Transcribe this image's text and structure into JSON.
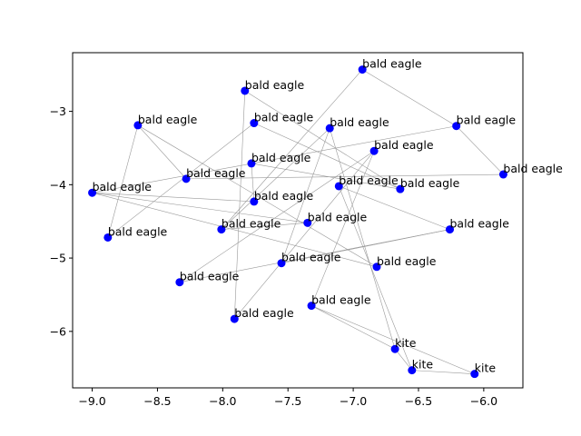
{
  "chart_data": {
    "type": "scatter",
    "title": "",
    "xlabel": "",
    "ylabel": "",
    "xlim": [
      -9.15,
      -5.7
    ],
    "ylim": [
      -6.77,
      -2.2
    ],
    "xticks": [
      -9.0,
      -8.5,
      -8.0,
      -7.5,
      -7.0,
      -6.5,
      -6.0
    ],
    "xtick_labels": [
      "−9.0",
      "−8.5",
      "−8.0",
      "−7.5",
      "−7.0",
      "−6.5",
      "−6.0"
    ],
    "yticks": [
      -6,
      -5,
      -4,
      -3
    ],
    "ytick_labels": [
      "−6",
      "−5",
      "−4",
      "−3"
    ],
    "grid": false,
    "marker_color": "#0000ff",
    "line_color": "#999999",
    "points": [
      {
        "x": -6.93,
        "y": -2.43,
        "label": "bald eagle"
      },
      {
        "x": -7.83,
        "y": -2.72,
        "label": "bald eagle"
      },
      {
        "x": -8.65,
        "y": -3.19,
        "label": "bald eagle"
      },
      {
        "x": -7.76,
        "y": -3.16,
        "label": "bald eagle"
      },
      {
        "x": -7.18,
        "y": -3.23,
        "label": "bald eagle"
      },
      {
        "x": -6.21,
        "y": -3.2,
        "label": "bald eagle"
      },
      {
        "x": -6.84,
        "y": -3.54,
        "label": "bald eagle"
      },
      {
        "x": -7.78,
        "y": -3.71,
        "label": "bald eagle"
      },
      {
        "x": -8.28,
        "y": -3.92,
        "label": "bald eagle"
      },
      {
        "x": -5.85,
        "y": -3.86,
        "label": "bald eagle"
      },
      {
        "x": -9.0,
        "y": -4.11,
        "label": "bald eagle"
      },
      {
        "x": -7.11,
        "y": -4.02,
        "label": "bald eagle"
      },
      {
        "x": -6.64,
        "y": -4.06,
        "label": "bald eagle"
      },
      {
        "x": -7.76,
        "y": -4.23,
        "label": "bald eagle"
      },
      {
        "x": -7.35,
        "y": -4.52,
        "label": "bald eagle"
      },
      {
        "x": -8.01,
        "y": -4.61,
        "label": "bald eagle"
      },
      {
        "x": -6.26,
        "y": -4.61,
        "label": "bald eagle"
      },
      {
        "x": -8.88,
        "y": -4.72,
        "label": "bald eagle"
      },
      {
        "x": -7.55,
        "y": -5.07,
        "label": "bald eagle"
      },
      {
        "x": -6.82,
        "y": -5.12,
        "label": "bald eagle"
      },
      {
        "x": -8.33,
        "y": -5.33,
        "label": "bald eagle"
      },
      {
        "x": -7.32,
        "y": -5.65,
        "label": "bald eagle"
      },
      {
        "x": -7.91,
        "y": -5.83,
        "label": "bald eagle"
      },
      {
        "x": -6.68,
        "y": -6.24,
        "label": "kite"
      },
      {
        "x": -6.55,
        "y": -6.53,
        "label": "kite"
      },
      {
        "x": -6.07,
        "y": -6.58,
        "label": "kite"
      }
    ],
    "edges": [
      [
        0,
        5
      ],
      [
        0,
        15
      ],
      [
        1,
        12
      ],
      [
        1,
        22
      ],
      [
        2,
        17
      ],
      [
        3,
        17
      ],
      [
        4,
        18
      ],
      [
        4,
        23
      ],
      [
        5,
        10
      ],
      [
        6,
        20
      ],
      [
        6,
        21
      ],
      [
        7,
        12
      ],
      [
        7,
        13
      ],
      [
        8,
        9
      ],
      [
        8,
        2
      ],
      [
        9,
        5
      ],
      [
        10,
        19
      ],
      [
        10,
        14
      ],
      [
        11,
        16
      ],
      [
        11,
        24
      ],
      [
        12,
        3
      ],
      [
        13,
        10
      ],
      [
        14,
        15
      ],
      [
        16,
        18
      ],
      [
        19,
        2
      ],
      [
        20,
        16
      ],
      [
        21,
        23
      ],
      [
        22,
        6
      ],
      [
        23,
        24
      ],
      [
        24,
        25
      ],
      [
        25,
        21
      ],
      [
        15,
        4
      ]
    ]
  }
}
